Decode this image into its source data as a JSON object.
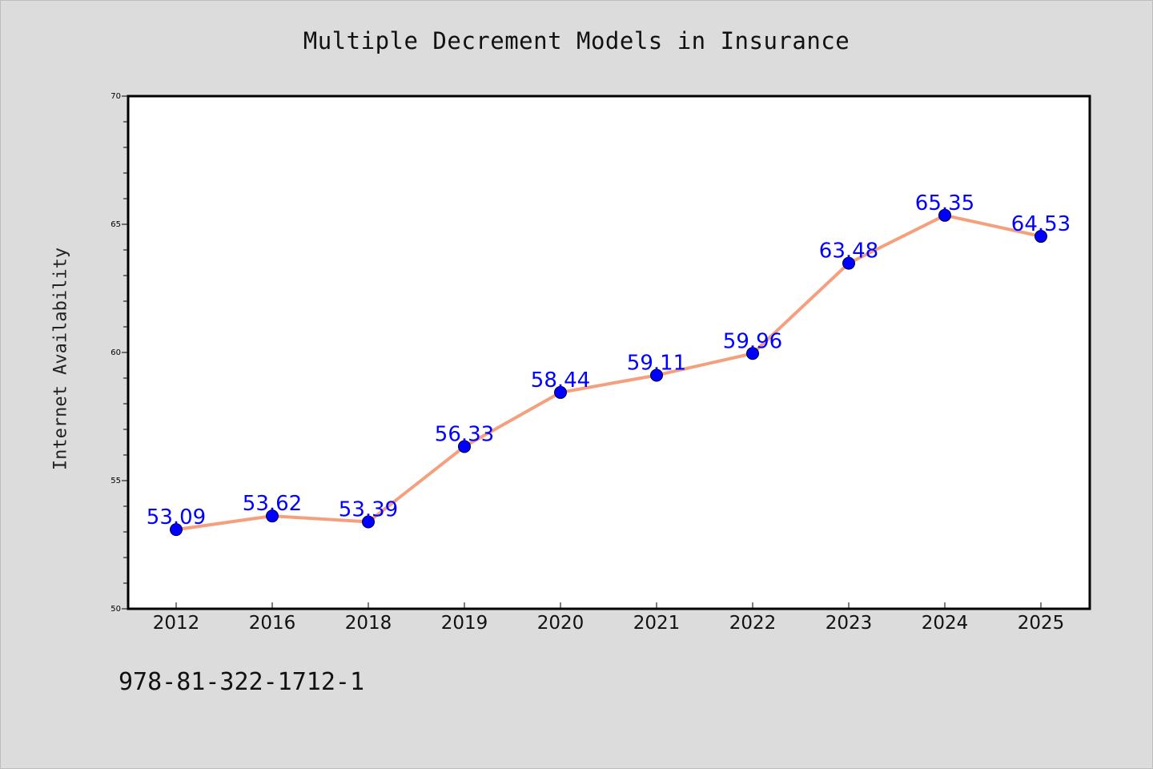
{
  "chart_data": {
    "type": "line",
    "title": "Multiple Decrement Models in Insurance",
    "xlabel": "",
    "ylabel": "Internet Availability",
    "categories": [
      "2012",
      "2016",
      "2018",
      "2019",
      "2020",
      "2021",
      "2022",
      "2023",
      "2024",
      "2025"
    ],
    "values": [
      53.09,
      53.62,
      53.39,
      56.33,
      58.44,
      59.11,
      59.96,
      63.48,
      65.35,
      64.53
    ],
    "data_labels": [
      "53.09",
      "53.62",
      "53.39",
      "56.33",
      "58.44",
      "59.11",
      "59.96",
      "63.48",
      "65.35",
      "64.53"
    ],
    "ylim": [
      50,
      70
    ],
    "yticks": [
      "50",
      "55",
      "60",
      "65",
      "70"
    ],
    "grid": false,
    "legend": "none",
    "colors": {
      "line": "#f4a07f",
      "marker": "#0000ff",
      "label": "#0000ff",
      "plot_background": "#ffffff",
      "figure_background": "#dcdcdc"
    }
  },
  "footer_text": "978-81-322-1712-1"
}
